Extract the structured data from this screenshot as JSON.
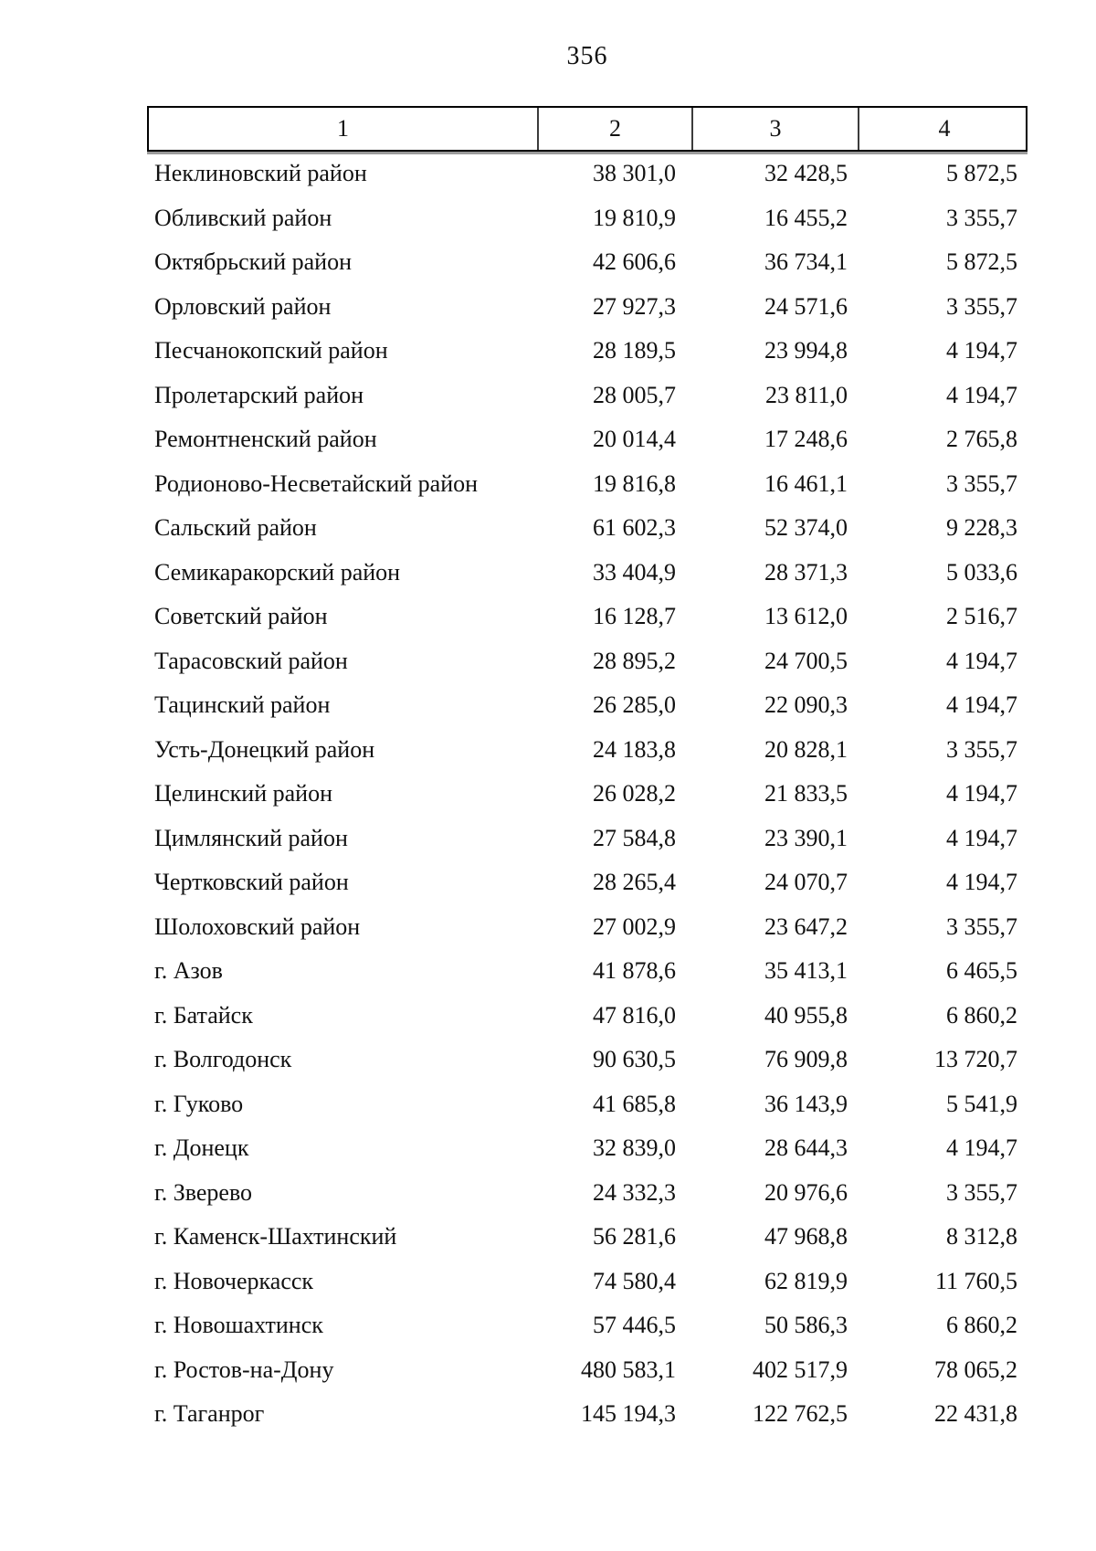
{
  "page": {
    "number": "356"
  },
  "table": {
    "header": {
      "columns": [
        "1",
        "2",
        "3",
        "4"
      ]
    },
    "rows": [
      {
        "name": "Неклиновский район",
        "c2": "38 301,0",
        "c3": "32 428,5",
        "c4": "5 872,5"
      },
      {
        "name": "Обливский район",
        "c2": "19 810,9",
        "c3": "16 455,2",
        "c4": "3 355,7"
      },
      {
        "name": "Октябрьский район",
        "c2": "42 606,6",
        "c3": "36 734,1",
        "c4": "5 872,5"
      },
      {
        "name": "Орловский район",
        "c2": "27 927,3",
        "c3": "24 571,6",
        "c4": "3 355,7"
      },
      {
        "name": "Песчанокопский район",
        "c2": "28 189,5",
        "c3": "23 994,8",
        "c4": "4 194,7"
      },
      {
        "name": "Пролетарский район",
        "c2": "28 005,7",
        "c3": "23 811,0",
        "c4": "4 194,7"
      },
      {
        "name": "Ремонтненский район",
        "c2": "20 014,4",
        "c3": "17 248,6",
        "c4": "2 765,8"
      },
      {
        "name": "Родионово-Несветайский район",
        "c2": "19 816,8",
        "c3": "16 461,1",
        "c4": "3 355,7"
      },
      {
        "name": "Сальский район",
        "c2": "61 602,3",
        "c3": "52 374,0",
        "c4": "9 228,3"
      },
      {
        "name": "Семикаракорский район",
        "c2": "33 404,9",
        "c3": "28 371,3",
        "c4": "5 033,6"
      },
      {
        "name": "Советский район",
        "c2": "16 128,7",
        "c3": "13 612,0",
        "c4": "2 516,7"
      },
      {
        "name": "Тарасовский район",
        "c2": "28 895,2",
        "c3": "24 700,5",
        "c4": "4 194,7"
      },
      {
        "name": "Тацинский район",
        "c2": "26 285,0",
        "c3": "22 090,3",
        "c4": "4 194,7"
      },
      {
        "name": "Усть-Донецкий район",
        "c2": "24 183,8",
        "c3": "20 828,1",
        "c4": "3 355,7"
      },
      {
        "name": "Целинский район",
        "c2": "26 028,2",
        "c3": "21 833,5",
        "c4": "4 194,7"
      },
      {
        "name": "Цимлянский район",
        "c2": "27 584,8",
        "c3": "23 390,1",
        "c4": "4 194,7"
      },
      {
        "name": "Чертковский район",
        "c2": "28 265,4",
        "c3": "24 070,7",
        "c4": "4 194,7"
      },
      {
        "name": "Шолоховский район",
        "c2": "27 002,9",
        "c3": "23 647,2",
        "c4": "3 355,7"
      },
      {
        "name": "г. Азов",
        "c2": "41 878,6",
        "c3": "35 413,1",
        "c4": "6 465,5"
      },
      {
        "name": "г. Батайск",
        "c2": "47 816,0",
        "c3": "40 955,8",
        "c4": "6 860,2"
      },
      {
        "name": "г. Волгодонск",
        "c2": "90 630,5",
        "c3": "76 909,8",
        "c4": "13 720,7"
      },
      {
        "name": "г. Гуково",
        "c2": "41 685,8",
        "c3": "36 143,9",
        "c4": "5 541,9"
      },
      {
        "name": "г. Донецк",
        "c2": "32 839,0",
        "c3": "28 644,3",
        "c4": "4 194,7"
      },
      {
        "name": "г. Зверево",
        "c2": "24 332,3",
        "c3": "20 976,6",
        "c4": "3 355,7"
      },
      {
        "name": "г. Каменск-Шахтинский",
        "c2": "56 281,6",
        "c3": "47 968,8",
        "c4": "8 312,8"
      },
      {
        "name": "г. Новочеркасск",
        "c2": "74 580,4",
        "c3": "62 819,9",
        "c4": "11 760,5"
      },
      {
        "name": "г. Новошахтинск",
        "c2": "57 446,5",
        "c3": "50 586,3",
        "c4": "6 860,2"
      },
      {
        "name": "г. Ростов-на-Дону",
        "c2": "480 583,1",
        "c3": "402 517,9",
        "c4": "78 065,2"
      },
      {
        "name": "г. Таганрог",
        "c2": "145 194,3",
        "c3": "122 762,5",
        "c4": "22 431,8"
      }
    ]
  }
}
